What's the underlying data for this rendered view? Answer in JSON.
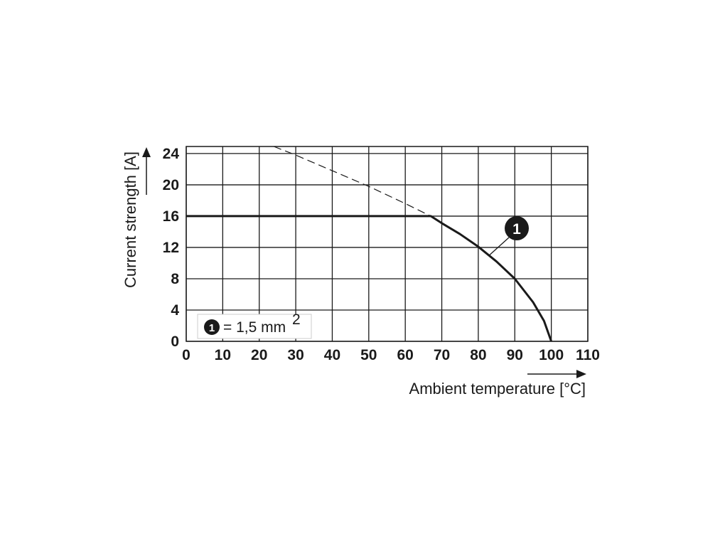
{
  "chart_data": {
    "type": "line",
    "xlabel": "Ambient temperature [°C]",
    "ylabel": "Current strength [A]",
    "xlim": [
      0,
      110
    ],
    "ylim": [
      0,
      24
    ],
    "x_ticks": [
      "0",
      "10",
      "20",
      "30",
      "40",
      "50",
      "60",
      "70",
      "80",
      "90",
      "100",
      "110"
    ],
    "y_ticks": [
      "0",
      "4",
      "8",
      "12",
      "16",
      "20",
      "24"
    ],
    "grid": true,
    "series": [
      {
        "marker": "1",
        "style": "solid",
        "points": [
          [
            0,
            16
          ],
          [
            67,
            16
          ],
          [
            70,
            15.1
          ],
          [
            75,
            13.7
          ],
          [
            80,
            12.1
          ],
          [
            85,
            10.2
          ],
          [
            90,
            8
          ],
          [
            95,
            5
          ],
          [
            98,
            2.6
          ],
          [
            100,
            0
          ]
        ]
      },
      {
        "style": "dashed",
        "points": [
          [
            24,
            24.9
          ],
          [
            30,
            23.8
          ],
          [
            40,
            21.8
          ],
          [
            50,
            19.8
          ],
          [
            60,
            17.6
          ],
          [
            67,
            16
          ]
        ]
      }
    ],
    "callout": {
      "marker": "1",
      "at": [
        83,
        11
      ]
    },
    "legend": {
      "marker": "1",
      "text": "= 1,5 mm",
      "superscript": "2",
      "placement": "bottom-left"
    }
  }
}
